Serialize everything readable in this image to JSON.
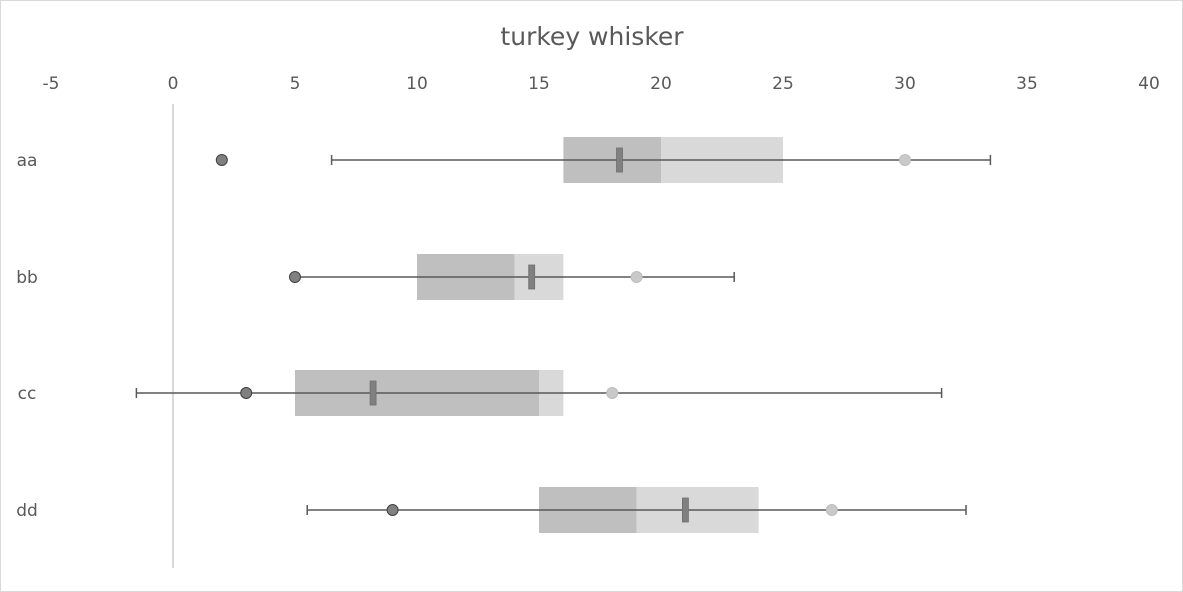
{
  "chart_data": {
    "type": "box-whisker",
    "orientation": "horizontal",
    "title": "turkey whisker",
    "xlabel": "",
    "ylabel": "",
    "xlim": [
      -5,
      40
    ],
    "x_ticks": [
      -5,
      0,
      5,
      10,
      15,
      20,
      25,
      30,
      35,
      40
    ],
    "categories": [
      "aa",
      "bb",
      "cc",
      "dd"
    ],
    "whisker_low": [
      6.5,
      5,
      -1.5,
      5.5
    ],
    "q1": [
      16,
      10,
      5,
      15
    ],
    "median": [
      20,
      14,
      15,
      19
    ],
    "q3": [
      25,
      16,
      16,
      24
    ],
    "whisker_high": [
      33.5,
      23,
      31.5,
      32.5
    ],
    "mean": [
      18.3,
      14.7,
      8.2,
      21
    ],
    "low_marker": [
      2,
      5,
      3,
      9
    ],
    "high_marker": [
      30,
      19,
      18,
      27
    ],
    "grid": false,
    "zero_line": true,
    "colors": {
      "lower_box": "#bfbfbf",
      "upper_box": "#d9d9d9",
      "whisker": "#595959",
      "mean_marker": "#808080",
      "low_marker": "#808080",
      "high_marker": "#c9c9c9",
      "zero_line": "#d9d9d9",
      "text": "#595959"
    }
  }
}
